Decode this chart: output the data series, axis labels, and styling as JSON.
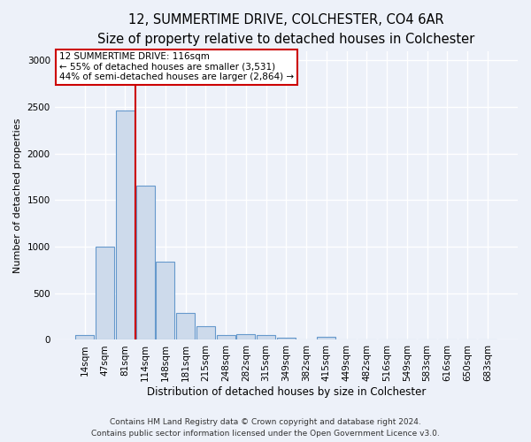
{
  "title1": "12, SUMMERTIME DRIVE, COLCHESTER, CO4 6AR",
  "title2": "Size of property relative to detached houses in Colchester",
  "xlabel": "Distribution of detached houses by size in Colchester",
  "ylabel": "Number of detached properties",
  "bar_labels": [
    "14sqm",
    "47sqm",
    "81sqm",
    "114sqm",
    "148sqm",
    "181sqm",
    "215sqm",
    "248sqm",
    "282sqm",
    "315sqm",
    "349sqm",
    "382sqm",
    "415sqm",
    "449sqm",
    "482sqm",
    "516sqm",
    "549sqm",
    "583sqm",
    "616sqm",
    "650sqm",
    "683sqm"
  ],
  "bar_values": [
    55,
    1000,
    2460,
    1650,
    835,
    290,
    145,
    50,
    60,
    50,
    20,
    0,
    30,
    0,
    0,
    0,
    0,
    0,
    0,
    0,
    0
  ],
  "bar_color": "#cddaeb",
  "bar_edge_color": "#6699cc",
  "vline_x_idx": 2.5,
  "property_sqm": 116,
  "annotation_line1": "12 SUMMERTIME DRIVE: 116sqm",
  "annotation_line2": "← 55% of detached houses are smaller (3,531)",
  "annotation_line3": "44% of semi-detached houses are larger (2,864) →",
  "annotation_box_color": "#ffffff",
  "annotation_border_color": "#cc0000",
  "vline_color": "#cc0000",
  "ylim": [
    0,
    3100
  ],
  "yticks": [
    0,
    500,
    1000,
    1500,
    2000,
    2500,
    3000
  ],
  "footer_line1": "Contains HM Land Registry data © Crown copyright and database right 2024.",
  "footer_line2": "Contains public sector information licensed under the Open Government Licence v3.0.",
  "background_color": "#edf1f9",
  "plot_bg_color": "#edf1f9",
  "title1_fontsize": 10.5,
  "title2_fontsize": 9.5,
  "xlabel_fontsize": 8.5,
  "ylabel_fontsize": 8,
  "tick_fontsize": 7.5,
  "footer_fontsize": 6.5
}
